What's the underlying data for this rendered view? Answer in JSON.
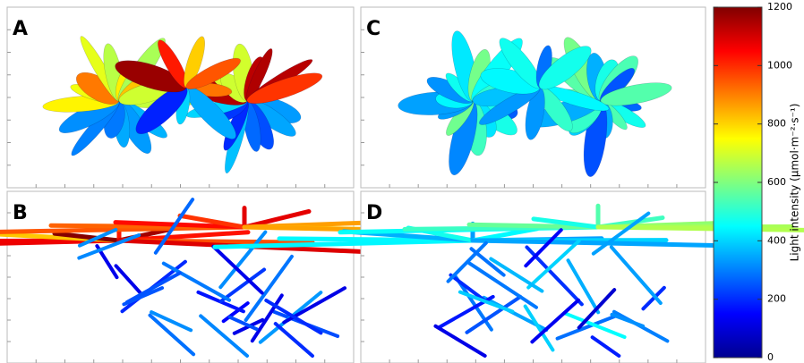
{
  "panels": [
    {
      "label": "A"
    },
    {
      "label": "B"
    },
    {
      "label": "C"
    },
    {
      "label": "D"
    }
  ],
  "colorbar": {
    "label": "Light intensity (μmol·m⁻²·s⁻¹)",
    "lim": [
      0,
      1200
    ],
    "ticks": [
      0,
      200,
      400,
      600,
      800,
      1000,
      1200
    ]
  }
}
